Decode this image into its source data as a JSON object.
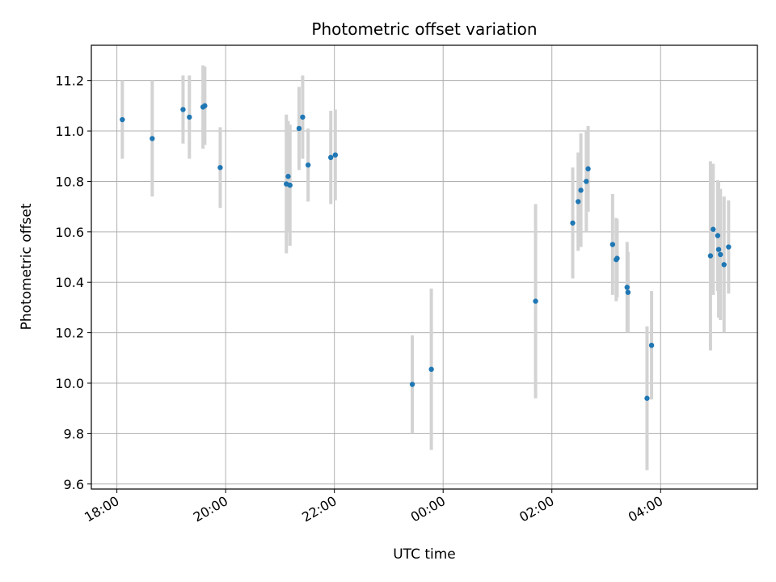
{
  "chart_data": {
    "type": "scatter",
    "title": "Photometric offset variation",
    "xlabel": "UTC time",
    "ylabel": "Photometric offset",
    "x_ticks": [
      "18:00",
      "20:00",
      "22:00",
      "00:00",
      "02:00",
      "04:00"
    ],
    "x_tick_hours": [
      18,
      20,
      22,
      24,
      26,
      28
    ],
    "xlim_hours": [
      17.53,
      29.78
    ],
    "y_ticks": [
      "9.6",
      "9.8",
      "10.0",
      "10.2",
      "10.4",
      "10.6",
      "10.8",
      "11.0",
      "11.2"
    ],
    "y_tick_values": [
      9.6,
      9.8,
      10.0,
      10.2,
      10.4,
      10.6,
      10.8,
      11.0,
      11.2
    ],
    "ylim": [
      9.58,
      11.34
    ],
    "grid": true,
    "marker_color": "#1f77b4",
    "errorbar_color": "#d3d3d3",
    "points": [
      {
        "t": "18:06",
        "y": 11.045,
        "err": 0.155
      },
      {
        "t": "18:39",
        "y": 10.97,
        "err": 0.23
      },
      {
        "t": "19:13",
        "y": 11.085,
        "err": 0.135
      },
      {
        "t": "19:20",
        "y": 11.055,
        "err": 0.165
      },
      {
        "t": "19:35",
        "y": 11.095,
        "err": 0.165
      },
      {
        "t": "19:37",
        "y": 11.1,
        "err": 0.155
      },
      {
        "t": "19:54",
        "y": 10.855,
        "err": 0.16
      },
      {
        "t": "21:07",
        "y": 10.79,
        "err": 0.275
      },
      {
        "t": "21:09",
        "y": 10.82,
        "err": 0.22
      },
      {
        "t": "21:11",
        "y": 10.785,
        "err": 0.24
      },
      {
        "t": "21:21",
        "y": 11.01,
        "err": 0.165
      },
      {
        "t": "21:25",
        "y": 11.055,
        "err": 0.165
      },
      {
        "t": "21:31",
        "y": 10.865,
        "err": 0.145
      },
      {
        "t": "21:56",
        "y": 10.895,
        "err": 0.185
      },
      {
        "t": "22:01",
        "y": 10.905,
        "err": 0.18
      },
      {
        "t": "23:26",
        "y": 9.995,
        "err": 0.195
      },
      {
        "t": "23:47",
        "y": 10.055,
        "err": 0.32
      },
      {
        "t": "01:42",
        "y": 10.325,
        "err": 0.385
      },
      {
        "t": "02:23",
        "y": 10.635,
        "err": 0.22
      },
      {
        "t": "02:29",
        "y": 10.72,
        "err": 0.195
      },
      {
        "t": "02:32",
        "y": 10.765,
        "err": 0.225
      },
      {
        "t": "02:38",
        "y": 10.8,
        "err": 0.2
      },
      {
        "t": "02:40",
        "y": 10.85,
        "err": 0.17
      },
      {
        "t": "03:07",
        "y": 10.55,
        "err": 0.2
      },
      {
        "t": "03:11",
        "y": 10.49,
        "err": 0.165
      },
      {
        "t": "03:12",
        "y": 10.495,
        "err": 0.155
      },
      {
        "t": "03:23",
        "y": 10.38,
        "err": 0.18
      },
      {
        "t": "03:24",
        "y": 10.36,
        "err": 0.16
      },
      {
        "t": "03:45",
        "y": 9.94,
        "err": 0.285
      },
      {
        "t": "03:50",
        "y": 10.15,
        "err": 0.215
      },
      {
        "t": "04:55",
        "y": 10.505,
        "err": 0.375
      },
      {
        "t": "04:58",
        "y": 10.61,
        "err": 0.26
      },
      {
        "t": "05:03",
        "y": 10.585,
        "err": 0.22
      },
      {
        "t": "05:04",
        "y": 10.53,
        "err": 0.27
      },
      {
        "t": "05:06",
        "y": 10.51,
        "err": 0.26
      },
      {
        "t": "05:10",
        "y": 10.47,
        "err": 0.27
      },
      {
        "t": "05:15",
        "y": 10.54,
        "err": 0.185
      }
    ]
  }
}
